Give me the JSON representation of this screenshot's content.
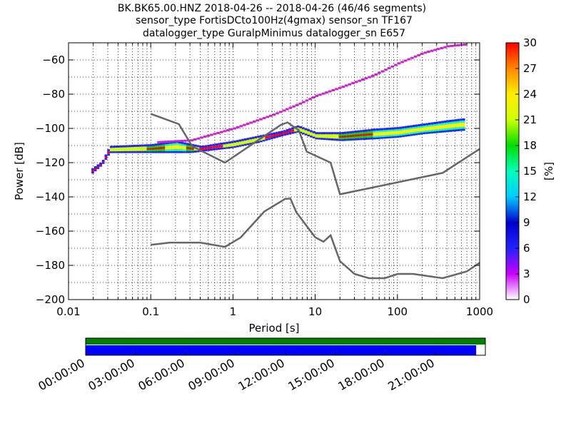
{
  "chart_data": {
    "type": "ppsd",
    "title_lines": [
      "BK.BK65.00.HNZ   2018-04-26 -- 2018-04-26  (46/46 segments)",
      "sensor_type FortisDCto100Hz(4gmax) sensor_sn TF167",
      "datalogger_type GuralpMinimus datalogger_sn E657"
    ],
    "xlabel": "Period [s]",
    "ylabel": "Power [dB]",
    "x_scale": "log",
    "xlim": [
      0.01,
      1000
    ],
    "ylim": [
      -200,
      -50
    ],
    "x_ticks": [
      {
        "value": 0.01,
        "label": "0.01"
      },
      {
        "value": 0.1,
        "label": "0.1"
      },
      {
        "value": 1,
        "label": "1"
      },
      {
        "value": 10,
        "label": "10"
      },
      {
        "value": 100,
        "label": "100"
      },
      {
        "value": 1000,
        "label": "1000"
      }
    ],
    "y_ticks": [
      -200,
      -180,
      -160,
      -140,
      -120,
      -100,
      -80,
      -60
    ],
    "grid": true,
    "colorbar": {
      "label": "[%]",
      "range": [
        0,
        30
      ],
      "ticks": [
        0,
        3,
        6,
        9,
        12,
        15,
        18,
        21,
        24,
        27,
        30
      ],
      "colors": [
        "#ffffff",
        "#cc00ff",
        "#2222ff",
        "#0000cc",
        "#00ccff",
        "#00ffbb",
        "#00dd00",
        "#ccff00",
        "#ffee00",
        "#ff8800",
        "#ff0000"
      ]
    },
    "series": [
      {
        "role": "noise_model_high",
        "color": "#666666",
        "points": [
          [
            0.1,
            -91.5
          ],
          [
            0.22,
            -97.5
          ],
          [
            0.32,
            -110.5
          ],
          [
            0.8,
            -120
          ],
          [
            3.8,
            -98
          ],
          [
            4.6,
            -96.5
          ],
          [
            6.3,
            -101
          ],
          [
            7.9,
            -113.6
          ],
          [
            15.4,
            -120
          ],
          [
            20,
            -138.5
          ],
          [
            354.8,
            -126
          ],
          [
            1000,
            -112
          ]
        ]
      },
      {
        "role": "noise_model_low",
        "color": "#666666",
        "points": [
          [
            0.1,
            -168
          ],
          [
            0.17,
            -166.7
          ],
          [
            0.4,
            -166.7
          ],
          [
            0.8,
            -169.2
          ],
          [
            1.24,
            -163.7
          ],
          [
            2.4,
            -148.6
          ],
          [
            4.3,
            -141.2
          ],
          [
            5,
            -141
          ],
          [
            5.9,
            -149
          ],
          [
            10,
            -163.6
          ],
          [
            12.6,
            -166.2
          ],
          [
            15.4,
            -162.4
          ],
          [
            20,
            -177.5
          ],
          [
            30,
            -185
          ],
          [
            45,
            -187.5
          ],
          [
            70,
            -187.5
          ],
          [
            101,
            -185
          ],
          [
            155,
            -185
          ],
          [
            354.8,
            -187.5
          ],
          [
            700,
            -183.5
          ],
          [
            1000,
            -178.5
          ]
        ]
      },
      {
        "role": "high_density_band_min",
        "points": [
          [
            0.019,
            -126
          ],
          [
            0.025,
            -121
          ],
          [
            0.031,
            -114
          ],
          [
            0.1,
            -114
          ],
          [
            0.3,
            -114
          ],
          [
            1,
            -111
          ],
          [
            2,
            -108
          ],
          [
            4,
            -104
          ],
          [
            6,
            -102
          ],
          [
            10,
            -106
          ],
          [
            20,
            -107
          ],
          [
            50,
            -106
          ],
          [
            100,
            -105
          ],
          [
            200,
            -103
          ],
          [
            600,
            -101
          ]
        ]
      },
      {
        "role": "high_density_band_max",
        "points": [
          [
            0.019,
            -124
          ],
          [
            0.025,
            -120
          ],
          [
            0.031,
            -111
          ],
          [
            0.1,
            -110
          ],
          [
            0.2,
            -108
          ],
          [
            0.4,
            -111
          ],
          [
            1,
            -108
          ],
          [
            2,
            -105
          ],
          [
            4,
            -102
          ],
          [
            6,
            -99
          ],
          [
            10,
            -103
          ],
          [
            20,
            -103
          ],
          [
            50,
            -101
          ],
          [
            100,
            -100
          ],
          [
            200,
            -98
          ],
          [
            400,
            -96
          ],
          [
            600,
            -95
          ]
        ]
      },
      {
        "role": "low_density_trace",
        "color": "#cc22cc",
        "points": [
          [
            0.12,
            -108
          ],
          [
            0.3,
            -107
          ],
          [
            1,
            -100
          ],
          [
            3,
            -92
          ],
          [
            6,
            -86
          ],
          [
            10,
            -81
          ],
          [
            20,
            -76
          ],
          [
            50,
            -69
          ],
          [
            100,
            -62
          ],
          [
            200,
            -56
          ],
          [
            400,
            -52
          ],
          [
            650,
            -51
          ]
        ]
      }
    ]
  },
  "timeline": {
    "labels": [
      "00:00:00",
      "03:00:00",
      "06:00:00",
      "09:00:00",
      "12:00:00",
      "15:00:00",
      "18:00:00",
      "21:00:00"
    ],
    "data_coverage": 0.977,
    "top_band_color": "#008000",
    "coverage_color": "#0000ff"
  }
}
